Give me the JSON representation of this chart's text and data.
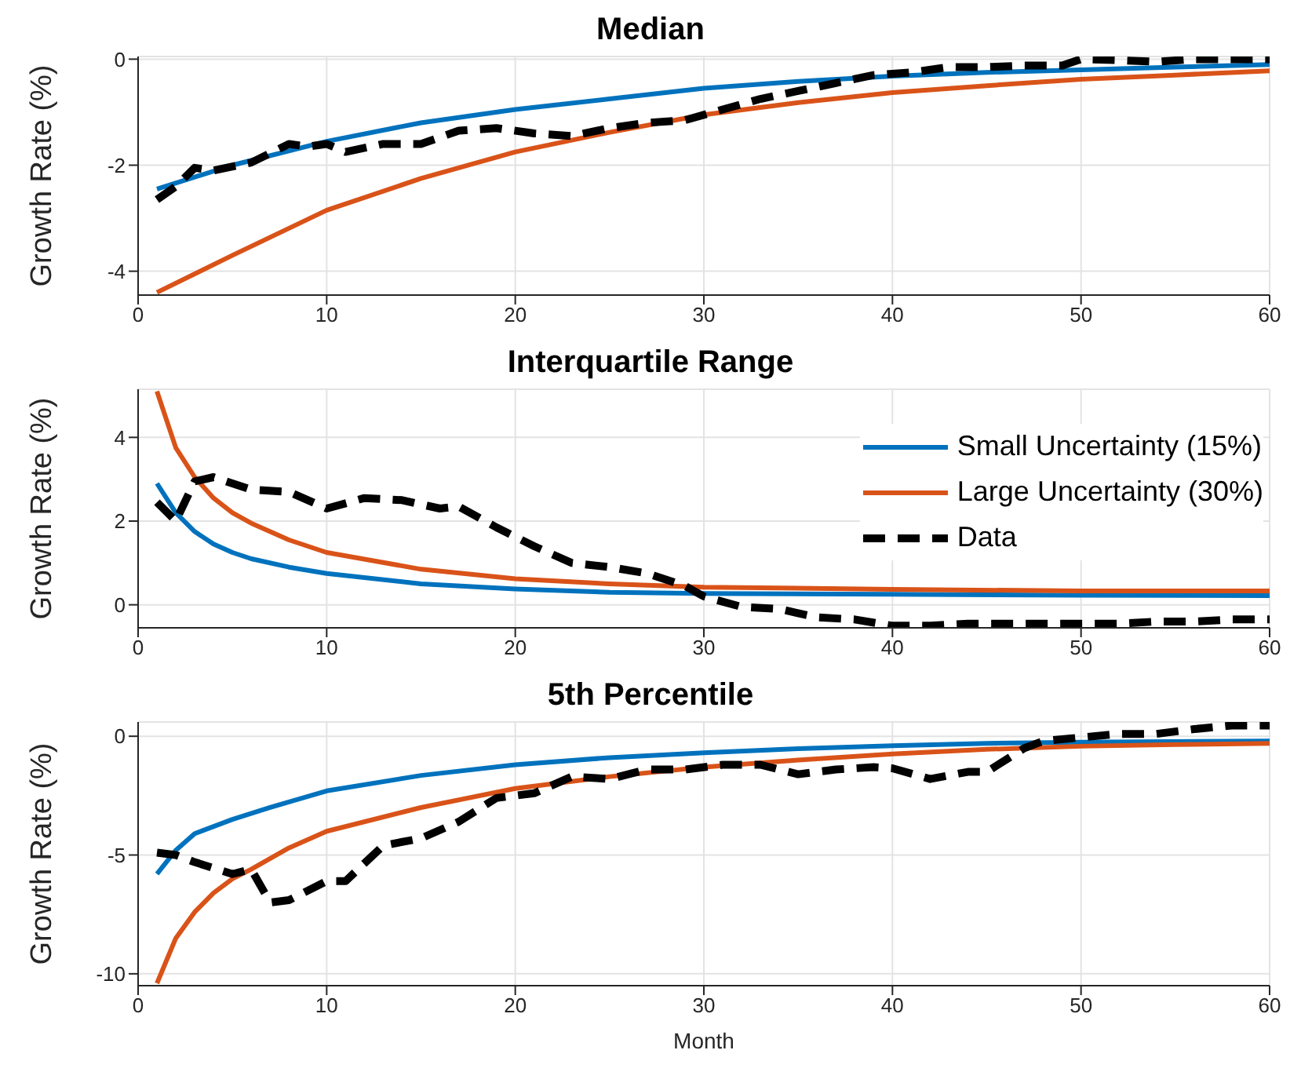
{
  "chart_data": [
    {
      "type": "line",
      "title": "Median",
      "ylabel": "Growth Rate (%)",
      "xlim": [
        0,
        60
      ],
      "xticks": [
        0,
        10,
        20,
        30,
        40,
        50,
        60
      ],
      "ylim": [
        -4.45,
        0.05
      ],
      "yticks": [
        -4,
        -2,
        0
      ],
      "grid": true,
      "legend": false,
      "marker": "none",
      "series": [
        {
          "color": "#0072bd",
          "line_style": "solid",
          "x": [
            1,
            5,
            10,
            15,
            20,
            25,
            30,
            35,
            40,
            45,
            50,
            55,
            60
          ],
          "values": [
            -2.45,
            -2.0,
            -1.55,
            -1.2,
            -0.95,
            -0.75,
            -0.55,
            -0.42,
            -0.32,
            -0.25,
            -0.2,
            -0.15,
            -0.1
          ]
        },
        {
          "color": "#d95319",
          "line_style": "solid",
          "x": [
            1,
            5,
            10,
            15,
            20,
            25,
            30,
            35,
            40,
            45,
            50,
            55,
            60
          ],
          "values": [
            -4.4,
            -3.7,
            -2.85,
            -2.25,
            -1.75,
            -1.38,
            -1.05,
            -0.82,
            -0.63,
            -0.5,
            -0.38,
            -0.3,
            -0.22
          ]
        },
        {
          "color": "#000000",
          "line_style": "dashed",
          "x": [
            1,
            2,
            3,
            4,
            6,
            8,
            9,
            10,
            11,
            13,
            15,
            17,
            19,
            21,
            23,
            25,
            27,
            29,
            31,
            33,
            35,
            37,
            39,
            41,
            43,
            45,
            47,
            49,
            50,
            52,
            54,
            56,
            58,
            60
          ],
          "values": [
            -2.65,
            -2.4,
            -2.05,
            -2.1,
            -1.95,
            -1.6,
            -1.65,
            -1.6,
            -1.75,
            -1.6,
            -1.6,
            -1.35,
            -1.3,
            -1.4,
            -1.45,
            -1.3,
            -1.2,
            -1.15,
            -0.95,
            -0.75,
            -0.6,
            -0.45,
            -0.3,
            -0.25,
            -0.15,
            -0.15,
            -0.12,
            -0.12,
            0,
            -0.02,
            -0.05,
            0,
            0,
            0
          ]
        }
      ]
    },
    {
      "type": "line",
      "title": "Interquartile Range",
      "ylabel": "Growth Rate (%)",
      "xlim": [
        0,
        60
      ],
      "xticks": [
        0,
        10,
        20,
        30,
        40,
        50,
        60
      ],
      "ylim": [
        -0.55,
        5.15
      ],
      "yticks": [
        0,
        2,
        4
      ],
      "grid": true,
      "legend": "top right",
      "marker": "none",
      "series": [
        {
          "name": "Small Uncertainty (15%)",
          "color": "#0072bd",
          "line_style": "solid",
          "x": [
            1,
            2,
            3,
            4,
            5,
            6,
            8,
            10,
            15,
            20,
            25,
            30,
            40,
            50,
            60
          ],
          "values": [
            2.9,
            2.2,
            1.75,
            1.45,
            1.25,
            1.1,
            0.9,
            0.75,
            0.5,
            0.38,
            0.3,
            0.27,
            0.25,
            0.23,
            0.22
          ]
        },
        {
          "name": "Large Uncertainty (30%)",
          "color": "#d95319",
          "line_style": "solid",
          "x": [
            1,
            2,
            3,
            4,
            5,
            6,
            8,
            10,
            15,
            20,
            25,
            30,
            40,
            50,
            60
          ],
          "values": [
            5.1,
            3.75,
            3.05,
            2.55,
            2.2,
            1.95,
            1.55,
            1.25,
            0.85,
            0.62,
            0.5,
            0.42,
            0.37,
            0.33,
            0.33
          ]
        },
        {
          "name": "Data",
          "color": "#000000",
          "line_style": "dashed",
          "x": [
            1,
            2,
            3,
            4,
            6,
            8,
            10,
            12,
            14,
            16,
            17,
            19,
            21,
            23,
            25,
            27,
            29,
            30,
            32,
            34,
            36,
            38,
            40,
            42,
            44,
            46,
            48,
            50,
            52,
            54,
            56,
            58,
            60
          ],
          "values": [
            2.45,
            2.0,
            2.95,
            3.05,
            2.75,
            2.7,
            2.3,
            2.55,
            2.5,
            2.3,
            2.35,
            1.85,
            1.4,
            1.0,
            0.9,
            0.75,
            0.45,
            0.2,
            -0.05,
            -0.1,
            -0.3,
            -0.35,
            -0.5,
            -0.5,
            -0.45,
            -0.45,
            -0.45,
            -0.45,
            -0.45,
            -0.4,
            -0.4,
            -0.35,
            -0.35
          ]
        }
      ]
    },
    {
      "type": "line",
      "title": "5th Percentile",
      "xlabel": "Month",
      "ylabel": "Growth Rate (%)",
      "xlim": [
        0,
        60
      ],
      "xticks": [
        0,
        10,
        20,
        30,
        40,
        50,
        60
      ],
      "ylim": [
        -10.5,
        0.6
      ],
      "yticks": [
        -10,
        -5,
        0
      ],
      "grid": true,
      "legend": false,
      "marker": "none",
      "series": [
        {
          "color": "#0072bd",
          "line_style": "solid",
          "x": [
            1,
            2,
            3,
            5,
            7,
            10,
            15,
            20,
            25,
            30,
            35,
            40,
            45,
            50,
            60
          ],
          "values": [
            -5.8,
            -4.8,
            -4.1,
            -3.5,
            -3.0,
            -2.3,
            -1.65,
            -1.2,
            -0.9,
            -0.7,
            -0.52,
            -0.4,
            -0.3,
            -0.25,
            -0.2
          ]
        },
        {
          "color": "#d95319",
          "line_style": "solid",
          "x": [
            1,
            2,
            3,
            4,
            5,
            6,
            8,
            10,
            15,
            20,
            25,
            30,
            35,
            40,
            45,
            50,
            55,
            60
          ],
          "values": [
            -10.4,
            -8.5,
            -7.4,
            -6.6,
            -6.0,
            -5.6,
            -4.7,
            -4.0,
            -3.0,
            -2.2,
            -1.7,
            -1.3,
            -1.0,
            -0.75,
            -0.55,
            -0.42,
            -0.35,
            -0.3
          ]
        },
        {
          "color": "#000000",
          "line_style": "dashed",
          "x": [
            1,
            2,
            3,
            5,
            6,
            7,
            8,
            10,
            11,
            13,
            15,
            17,
            19,
            21,
            23,
            25,
            27,
            29,
            31,
            33,
            35,
            37,
            39,
            40,
            42,
            44,
            45,
            47,
            48,
            50,
            52,
            54,
            56,
            58,
            60
          ],
          "values": [
            -4.9,
            -5.0,
            -5.3,
            -5.8,
            -5.6,
            -7.0,
            -6.9,
            -6.1,
            -6.1,
            -4.6,
            -4.3,
            -3.6,
            -2.6,
            -2.4,
            -1.7,
            -1.8,
            -1.4,
            -1.4,
            -1.2,
            -1.2,
            -1.6,
            -1.4,
            -1.3,
            -1.35,
            -1.8,
            -1.5,
            -1.5,
            -0.5,
            -0.2,
            -0.05,
            0.1,
            0.1,
            0.3,
            0.45,
            0.45
          ]
        }
      ]
    }
  ]
}
